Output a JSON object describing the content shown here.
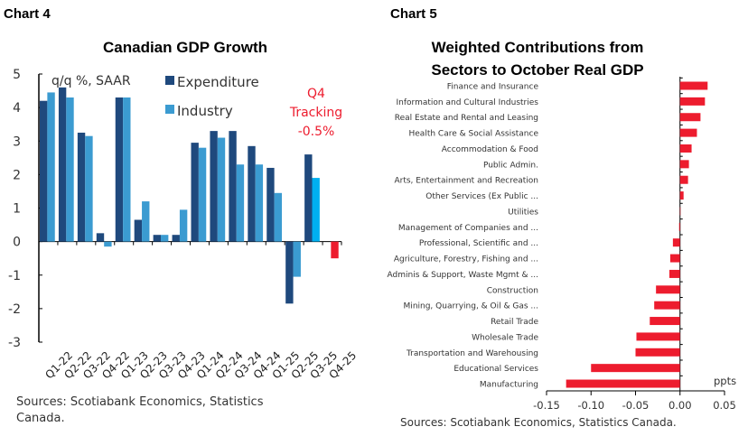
{
  "chart_data": [
    {
      "label": "Chart 4",
      "type": "bar",
      "title": "Canadian GDP Growth",
      "ylabel": "q/q %, SAAR",
      "ylim": [
        -3,
        5
      ],
      "yticks": [
        "5",
        "4",
        "3",
        "2",
        "1",
        "0",
        "-1",
        "-2",
        "-3"
      ],
      "categories": [
        "Q1-22",
        "Q2-22",
        "Q3-22",
        "Q4-22",
        "Q1-23",
        "Q2-23",
        "Q3-23",
        "Q4-23",
        "Q1-24",
        "Q2-24",
        "Q3-24",
        "Q4-24",
        "Q1-25",
        "Q2-25",
        "Q3-25",
        "Q4-25"
      ],
      "series": [
        {
          "name": "Expenditure",
          "color": "#1f497d",
          "values": [
            4.2,
            4.6,
            3.25,
            0.25,
            4.3,
            0.65,
            0.2,
            0.2,
            2.95,
            3.3,
            3.3,
            2.85,
            2.2,
            -1.85,
            2.6,
            null
          ]
        },
        {
          "name": "Industry",
          "color": "#3b9bd1",
          "values": [
            4.45,
            4.3,
            3.15,
            -0.15,
            4.3,
            1.2,
            0.2,
            0.95,
            2.8,
            3.1,
            2.3,
            2.3,
            1.45,
            -1.05,
            1.9,
            null
          ]
        },
        {
          "name": "Q4 Tracking",
          "color": "#ed1c2e",
          "values": [
            null,
            null,
            null,
            null,
            null,
            null,
            null,
            null,
            null,
            null,
            null,
            null,
            null,
            null,
            null,
            -0.5
          ]
        }
      ],
      "highlight_color": "#00b0f0",
      "annotation": [
        "Q4",
        "Tracking",
        "-0.5%"
      ],
      "source": "Sources: Scotiabank Economics, Statistics Canada."
    },
    {
      "label": "Chart 5",
      "type": "bar",
      "orientation": "horizontal",
      "title": "Weighted Contributions from Sectors to October Real GDP",
      "xlabel": "ppts",
      "xlim": [
        -0.15,
        0.05
      ],
      "xticks": [
        "-0.15",
        "-0.10",
        "-0.05",
        "0.00",
        "0.05"
      ],
      "color": "#ed1c2e",
      "categories": [
        "Finance and Insurance",
        "Information and Cultural Industries",
        "Real Estate and Rental and Leasing",
        "Health Care & Social Assistance",
        "Accommodation & Food",
        "Public Admin.",
        "Arts, Entertainment and Recreation",
        "Other Services (Ex Public ...",
        "Utilities",
        "Management of Companies and ...",
        "Professional, Scientific and ...",
        "Agriculture, Forestry, Fishing and ...",
        "Adminis & Support, Waste Mgmt & ...",
        "Construction",
        "Mining, Quarrying, & Oil & Gas ...",
        "Retail Trade",
        "Wholesale Trade",
        "Transportation and Warehousing",
        "Educational Services",
        "Manufacturing"
      ],
      "values": [
        0.031,
        0.028,
        0.023,
        0.019,
        0.013,
        0.01,
        0.009,
        0.004,
        0.0,
        -0.001,
        -0.008,
        -0.011,
        -0.012,
        -0.027,
        -0.029,
        -0.034,
        -0.049,
        -0.05,
        -0.1,
        -0.128
      ],
      "source": "Sources: Scotiabank Economics, Statistics Canada."
    }
  ]
}
